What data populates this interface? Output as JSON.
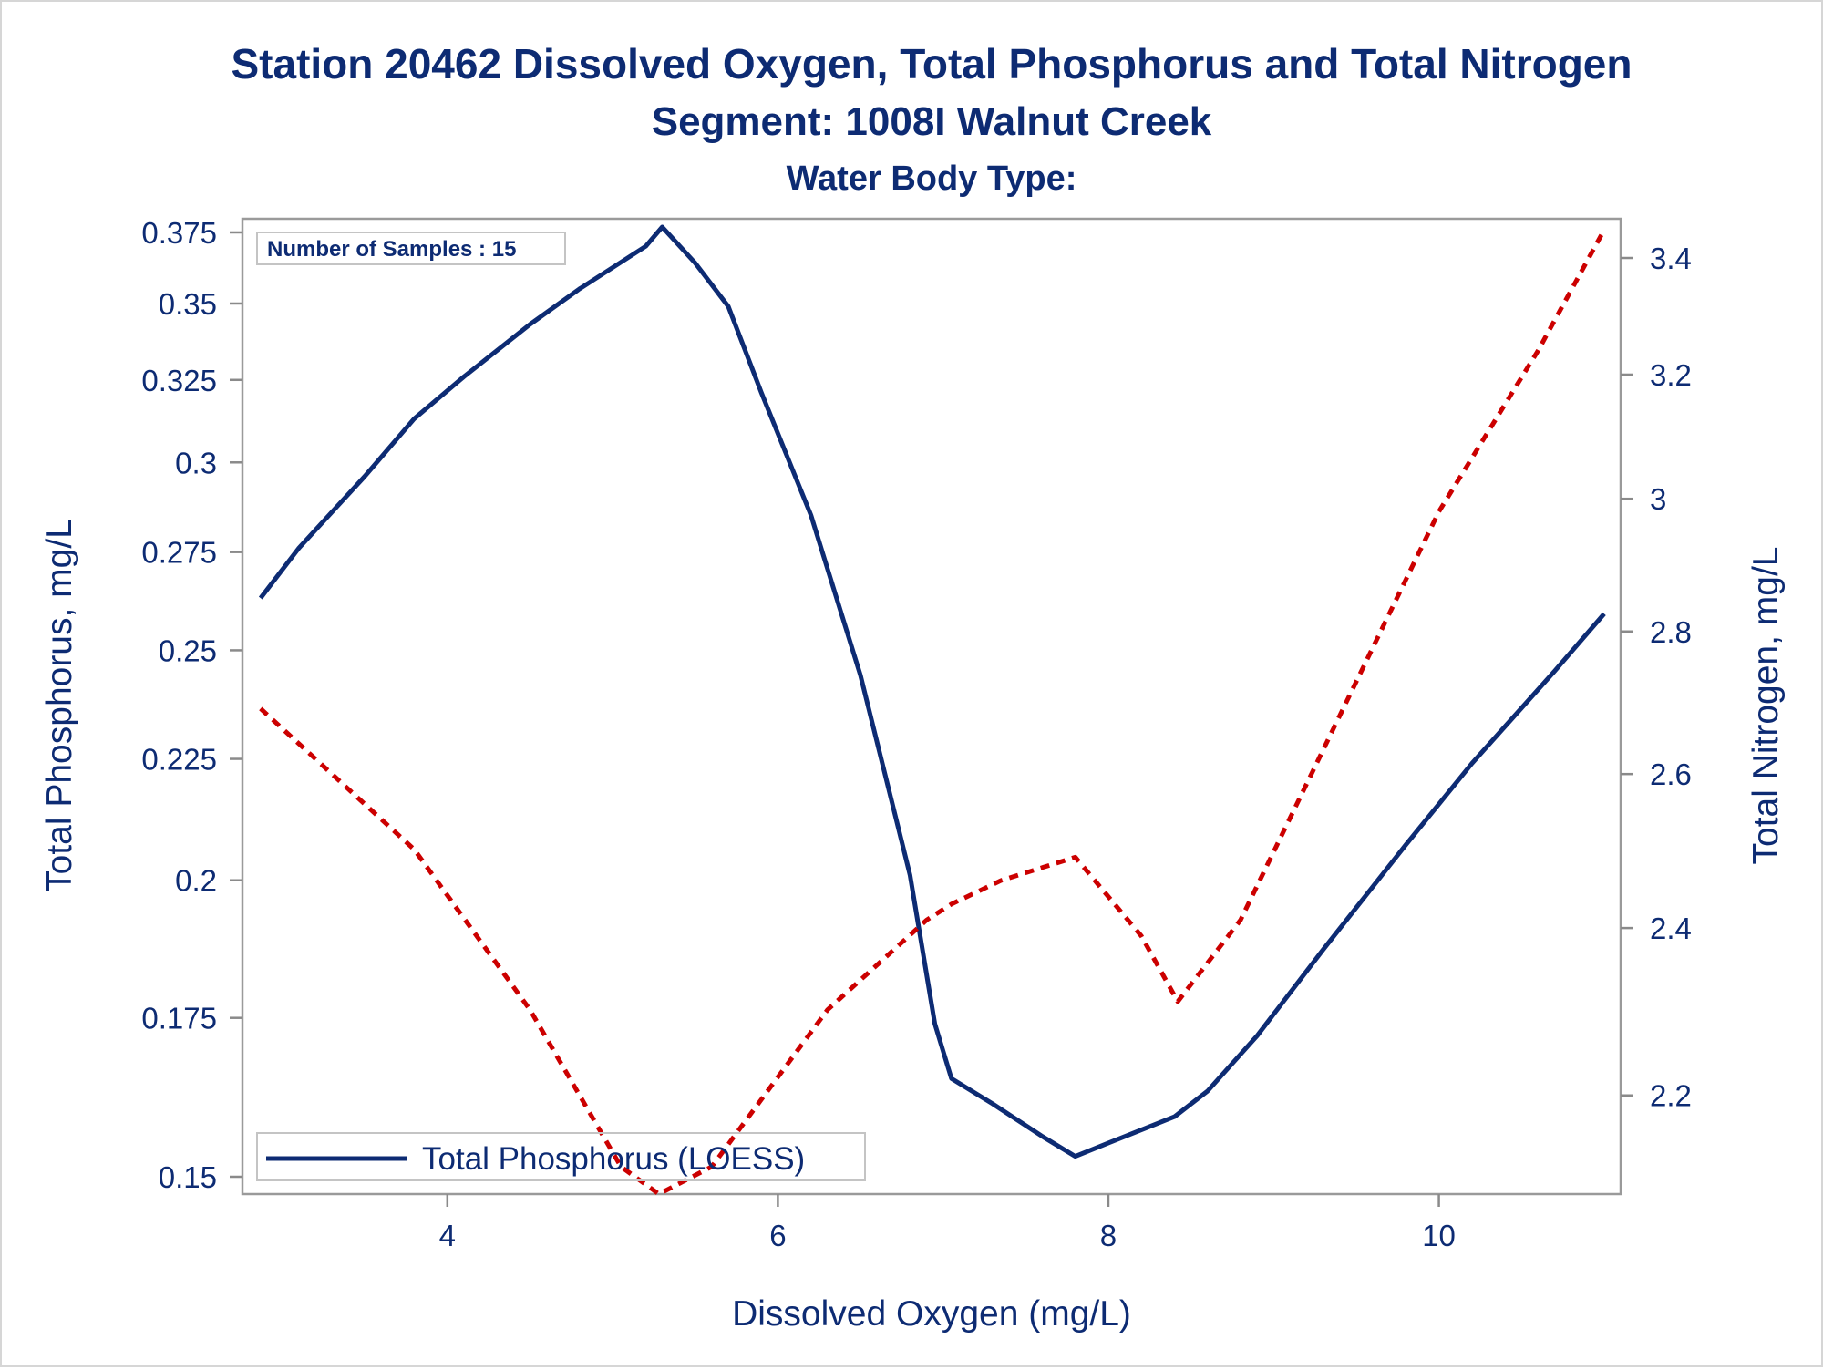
{
  "colors": {
    "text": "#0d2b73",
    "phosphorus_line": "#0d2b73",
    "nitrogen_line": "#cc0000",
    "frame": "#9a9a9a",
    "axis": "#8a8a8a"
  },
  "chart_data": {
    "type": "line",
    "title": "Station 20462  Dissolved Oxygen, Total Phosphorus and Total Nitrogen",
    "subtitle": "Segment: 1008I  Walnut Creek",
    "subtitle2": "Water Body Type:",
    "xlabel": "Dissolved Oxygen (mg/L)",
    "ylabel": "Total Phosphorus, mg/L",
    "y2label": "Total Nitrogen, mg/L",
    "xlim": [
      2.76,
      11.1
    ],
    "ylim": [
      0.1475,
      0.38
    ],
    "y_scale": "log",
    "y2lim": [
      2.09,
      3.47
    ],
    "y2_scale": "log",
    "x_ticks": [
      4,
      6,
      8,
      10
    ],
    "x_tick_labels": [
      "4",
      "6",
      "8",
      "10"
    ],
    "y_ticks": [
      0.15,
      0.175,
      0.2,
      0.225,
      0.25,
      0.275,
      0.3,
      0.325,
      0.35,
      0.375
    ],
    "y_tick_labels": [
      "0.15",
      "0.175",
      "0.2",
      "0.225",
      "0.25",
      "0.275",
      "0.3",
      "0.325",
      "0.35",
      "0.375"
    ],
    "y2_ticks": [
      2.2,
      2.4,
      2.6,
      2.8,
      3,
      3.2,
      3.4
    ],
    "y2_tick_labels": [
      "2.2",
      "2.4",
      "2.6",
      "2.8",
      "3",
      "3.2",
      "3.4"
    ],
    "annotation": "Number of Samples : 15",
    "legend": {
      "placement": "bottom-left",
      "entries": [
        "Total Phosphorus (LOESS)"
      ]
    },
    "series": [
      {
        "name": "Total Phosphorus (LOESS)",
        "axis": "left",
        "style": "solid",
        "x": [
          2.87,
          3.1,
          3.5,
          3.8,
          4.1,
          4.5,
          4.8,
          5.2,
          5.3,
          5.5,
          5.7,
          5.9,
          6.2,
          6.5,
          6.8,
          6.95,
          7.05,
          7.3,
          7.6,
          7.8,
          8.0,
          8.4,
          8.6,
          8.9,
          9.3,
          9.8,
          10.2,
          10.7,
          11.0
        ],
        "y": [
          0.263,
          0.276,
          0.296,
          0.313,
          0.326,
          0.343,
          0.355,
          0.37,
          0.377,
          0.364,
          0.349,
          0.321,
          0.285,
          0.244,
          0.201,
          0.174,
          0.165,
          0.161,
          0.156,
          0.153,
          0.155,
          0.159,
          0.163,
          0.172,
          0.187,
          0.207,
          0.224,
          0.245,
          0.259
        ]
      },
      {
        "name": "Total Nitrogen",
        "axis": "right",
        "style": "dotted",
        "x": [
          2.87,
          3.8,
          4.5,
          5.05,
          5.28,
          5.6,
          6.3,
          6.9,
          7.05,
          7.35,
          7.8,
          8.2,
          8.42,
          8.8,
          9.4,
          10.0,
          10.6,
          11.0
        ],
        "y": [
          2.69,
          2.5,
          2.3,
          2.12,
          2.09,
          2.12,
          2.3,
          2.41,
          2.43,
          2.46,
          2.49,
          2.39,
          2.31,
          2.41,
          2.68,
          2.98,
          3.24,
          3.45
        ]
      }
    ]
  }
}
